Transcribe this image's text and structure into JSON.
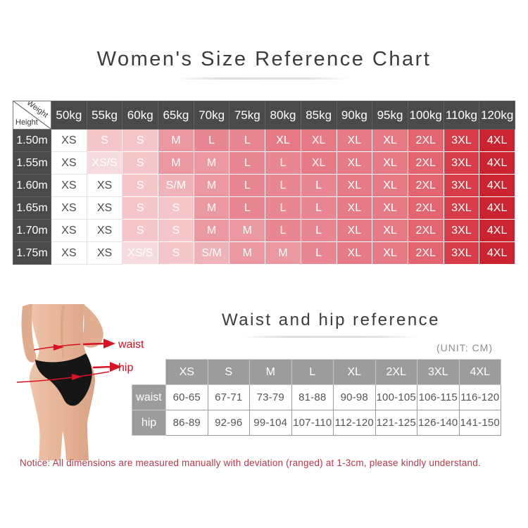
{
  "page": {
    "title": "Women's Size Reference Chart",
    "notice": "Notice:  All dimensions are measured manually with deviation (ranged) at 1-3cm, please kindly understand."
  },
  "size_chart": {
    "corner": {
      "top_label": "Weight",
      "side_label": "Height"
    },
    "weight_headers": [
      "50kg",
      "55kg",
      "60kg",
      "65kg",
      "70kg",
      "75kg",
      "80kg",
      "85kg",
      "90kg",
      "95kg",
      "100kg",
      "110kg",
      "120kg"
    ],
    "rows": [
      {
        "height": "1.50m",
        "sizes": [
          "XS",
          "S",
          "S",
          "M",
          "L",
          "L",
          "XL",
          "XL",
          "XL",
          "XL",
          "2XL",
          "3XL",
          "4XL"
        ]
      },
      {
        "height": "1.55m",
        "sizes": [
          "XS",
          "XS/S",
          "S",
          "M",
          "M",
          "L",
          "L",
          "XL",
          "XL",
          "XL",
          "2XL",
          "3XL",
          "4XL"
        ]
      },
      {
        "height": "1.60m",
        "sizes": [
          "XS",
          "XS",
          "S",
          "S/M",
          "M",
          "L",
          "L",
          "L",
          "XL",
          "XL",
          "2XL",
          "3XL",
          "4XL"
        ]
      },
      {
        "height": "1.65m",
        "sizes": [
          "XS",
          "XS",
          "S",
          "S",
          "M",
          "L",
          "L",
          "L",
          "XL",
          "XL",
          "2XL",
          "3XL",
          "4XL"
        ]
      },
      {
        "height": "1.70m",
        "sizes": [
          "XS",
          "XS",
          "S",
          "S",
          "M",
          "M",
          "L",
          "L",
          "XL",
          "XL",
          "2XL",
          "3XL",
          "4XL"
        ]
      },
      {
        "height": "1.75m",
        "sizes": [
          "XS",
          "XS",
          "XS/S",
          "S",
          "S/M",
          "M",
          "M",
          "L",
          "XL",
          "XL",
          "2XL",
          "3XL",
          "4XL"
        ]
      }
    ],
    "size_colors": {
      "XS": {
        "bg": "#ffffff",
        "text": "#4b4b4b"
      },
      "XS/S": {
        "bg": "#f7dcdf",
        "text": "#ffffff"
      },
      "S": {
        "bg": "#f3c6ca",
        "text": "#ffffff"
      },
      "S/M": {
        "bg": "#efb2b8",
        "text": "#ffffff"
      },
      "M": {
        "bg": "#eb9aa2",
        "text": "#ffffff"
      },
      "L": {
        "bg": "#e88791",
        "text": "#ffffff"
      },
      "XL": {
        "bg": "#e67b85",
        "text": "#ffffff"
      },
      "2XL": {
        "bg": "#e2656f",
        "text": "#ffffff"
      },
      "3XL": {
        "bg": "#d73c49",
        "text": "#ffffff"
      },
      "4XL": {
        "bg": "#ca2431",
        "text": "#ffffff"
      }
    },
    "header_bg": "#4a4a48"
  },
  "measure_section": {
    "title": "Waist and hip reference",
    "unit_label": "(UNIT: CM)",
    "figure": {
      "waist_label": "waist",
      "hip_label": "hip"
    },
    "table": {
      "columns": [
        "XS",
        "S",
        "M",
        "L",
        "XL",
        "2XL",
        "3XL",
        "4XL"
      ],
      "rows": [
        {
          "label": "waist",
          "values": [
            "60-65",
            "67-71",
            "73-79",
            "81-88",
            "90-98",
            "100-105",
            "106-115",
            "116-120"
          ]
        },
        {
          "label": "hip",
          "values": [
            "86-89",
            "92-96",
            "99-104",
            "107-110",
            "112-120",
            "121-125",
            "126-140",
            "141-150"
          ]
        }
      ]
    }
  },
  "colors": {
    "accent_red": "#d81424",
    "notice_red": "#b2394a",
    "dark_header": "#4a4a48",
    "gray_header": "#9c9c9c"
  }
}
